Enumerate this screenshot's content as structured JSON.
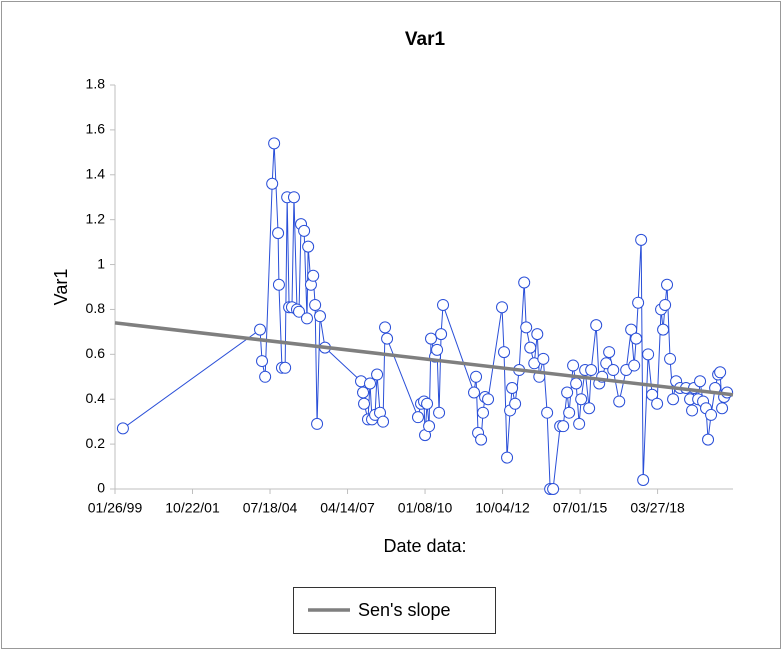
{
  "chart_data": {
    "type": "line",
    "title": "Var1",
    "y_label": "Var1",
    "x_label": "Date data:",
    "color": "#2a4fd8",
    "x": [
      "1999-05-08",
      "2004-03-11",
      "2004-04-06",
      "2004-05-16",
      "2004-08-15",
      "2004-09-09",
      "2004-10-30",
      "2004-11-10",
      "2004-12-19",
      "2005-01-29",
      "2005-02-24",
      "2005-03-21",
      "2005-04-27",
      "2005-05-23",
      "2005-07-01",
      "2005-07-27",
      "2005-08-22",
      "2005-10-01",
      "2005-11-07",
      "2005-11-22",
      "2005-12-28",
      "2006-01-26",
      "2006-02-20",
      "2006-03-17",
      "2006-04-24",
      "2006-06-27",
      "2007-10-05",
      "2007-10-31",
      "2007-11-13",
      "2008-01-03",
      "2008-01-29",
      "2008-02-24",
      "2008-04-03",
      "2008-04-29",
      "2008-06-06",
      "2008-07-15",
      "2008-08-10",
      "2008-09-05",
      "2009-10-09",
      "2009-11-17",
      "2009-12-26",
      "2010-01-08",
      "2010-02-03",
      "2010-03-01",
      "2010-03-26",
      "2010-05-17",
      "2010-06-12",
      "2010-07-08",
      "2010-08-03",
      "2010-08-28",
      "2011-10-02",
      "2011-10-28",
      "2011-11-23",
      "2012-01-01",
      "2012-01-26",
      "2012-02-21",
      "2012-03-31",
      "2012-09-27",
      "2012-10-23",
      "2012-12-01",
      "2013-01-09",
      "2013-02-04",
      "2013-03-15",
      "2013-05-06",
      "2013-07-10",
      "2013-08-05",
      "2013-09-26",
      "2013-11-17",
      "2013-12-26",
      "2014-01-21",
      "2014-03-14",
      "2014-05-02",
      "2014-06-10",
      "2014-07-18",
      "2014-10-17",
      "2014-11-25",
      "2015-01-15",
      "2015-02-10",
      "2015-04-02",
      "2015-05-11",
      "2015-06-19",
      "2015-07-15",
      "2015-09-04",
      "2015-10-26",
      "2015-11-21",
      "2016-01-25",
      "2016-03-04",
      "2016-04-11",
      "2016-06-02",
      "2016-07-10",
      "2016-09-01",
      "2016-11-17",
      "2017-02-15",
      "2017-04-20",
      "2017-05-29",
      "2017-06-24",
      "2017-07-19",
      "2017-08-27",
      "2017-09-22",
      "2017-11-25",
      "2018-01-16",
      "2018-03-21",
      "2018-05-11",
      "2018-06-06",
      "2018-07-02",
      "2018-07-27",
      "2018-09-04",
      "2018-10-13",
      "2018-11-21",
      "2019-01-11",
      "2019-03-29",
      "2019-05-20",
      "2019-06-15",
      "2019-07-10",
      "2019-09-01",
      "2019-09-26",
      "2019-11-04",
      "2019-12-12",
      "2020-01-07",
      "2020-02-15",
      "2020-04-07",
      "2020-05-16",
      "2020-06-11",
      "2020-07-06",
      "2020-08-01",
      "2020-09-09"
    ],
    "values": [
      0.27,
      0.71,
      0.57,
      0.5,
      1.36,
      1.54,
      1.14,
      0.91,
      0.54,
      0.54,
      1.3,
      0.81,
      0.81,
      1.3,
      0.8,
      0.79,
      1.18,
      1.15,
      0.76,
      1.08,
      0.91,
      0.95,
      0.82,
      0.29,
      0.77,
      0.63,
      0.48,
      0.43,
      0.38,
      0.31,
      0.47,
      0.31,
      0.33,
      0.51,
      0.34,
      0.3,
      0.72,
      0.67,
      0.32,
      0.38,
      0.39,
      0.24,
      0.38,
      0.28,
      0.67,
      0.59,
      0.62,
      0.34,
      0.69,
      0.82,
      0.43,
      0.5,
      0.25,
      0.22,
      0.34,
      0.41,
      0.4,
      0.81,
      0.61,
      0.14,
      0.35,
      0.45,
      0.38,
      0.53,
      0.92,
      0.72,
      0.63,
      0.56,
      0.69,
      0.5,
      0.58,
      0.34,
      0,
      0,
      0.28,
      0.28,
      0.43,
      0.34,
      0.55,
      0.47,
      0.29,
      0.4,
      0.53,
      0.36,
      0.53,
      0.73,
      0.47,
      0.5,
      0.56,
      0.61,
      0.53,
      0.39,
      0.53,
      0.71,
      0.55,
      0.67,
      0.83,
      1.11,
      0.04,
      0.6,
      0.42,
      0.38,
      0.8,
      0.71,
      0.82,
      0.91,
      0.58,
      0.4,
      0.48,
      0.45,
      0.45,
      0.4,
      0.35,
      0.45,
      0.4,
      0.48,
      0.39,
      0.36,
      0.22,
      0.33,
      0.45,
      0.51,
      0.52,
      0.36,
      0.41,
      0.43
    ],
    "trend": {
      "name": "Sen's slope",
      "color": "#7f7f7f",
      "x": [
        "1999-01-26",
        "2020-11-24"
      ],
      "values": [
        0.74,
        0.42
      ]
    },
    "xlim": [
      "1999-01-26",
      "2020-11-24"
    ],
    "xticks": [
      {
        "value": "1999-01-26",
        "label": "01/26/99"
      },
      {
        "value": "2001-10-22",
        "label": "10/22/01"
      },
      {
        "value": "2004-07-18",
        "label": "07/18/04"
      },
      {
        "value": "2007-04-14",
        "label": "04/14/07"
      },
      {
        "value": "2010-01-08",
        "label": "01/08/10"
      },
      {
        "value": "2012-10-04",
        "label": "10/04/12"
      },
      {
        "value": "2015-07-01",
        "label": "07/01/15"
      },
      {
        "value": "2018-03-27",
        "label": "03/27/18"
      }
    ],
    "ylim": [
      0,
      1.8
    ],
    "yticks": [
      0,
      0.2,
      0.4,
      0.6,
      0.8,
      1,
      1.2,
      1.4,
      1.6,
      1.8
    ],
    "grid": false
  }
}
